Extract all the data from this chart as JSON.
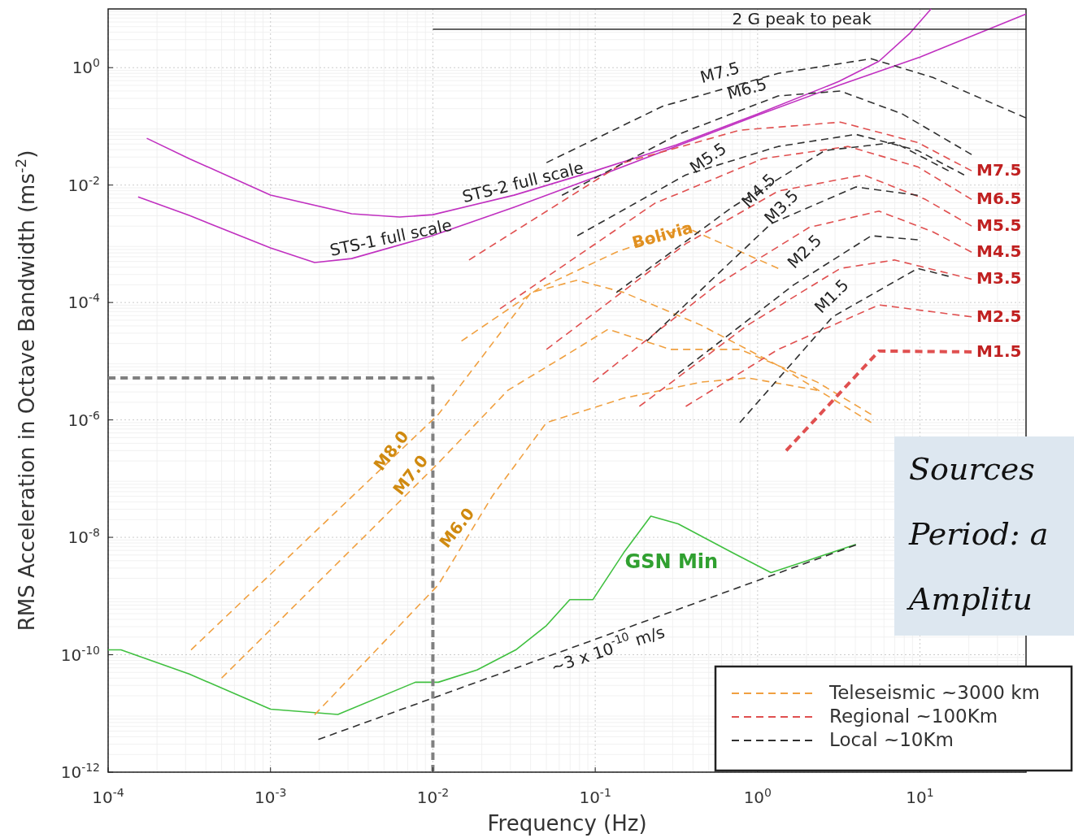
{
  "chart_data": {
    "type": "line",
    "xlabel": "Frequency (Hz)",
    "ylabel": "RMS Acceleration in Octave Bandwidth (ms$^{-2}$)",
    "log": "xy",
    "grid": true,
    "legend": "bottom right",
    "line_style": "solid",
    "xlim": [
      0.0001,
      45
    ],
    "ylim": [
      1e-12,
      10
    ],
    "xticks": [
      {
        "value": 0.0001,
        "label": "10$^{-4}$"
      },
      {
        "value": 0.001,
        "label": "10$^{-3}$"
      },
      {
        "value": 0.01,
        "label": "10$^{-2}$"
      },
      {
        "value": 0.1,
        "label": "10$^{-1}$"
      },
      {
        "value": 1,
        "label": "10$^{0}$"
      },
      {
        "value": 10,
        "label": "10$^{1}$"
      }
    ],
    "yticks": [
      {
        "value": 1e-12,
        "label": "10$^{-12}$"
      },
      {
        "value": 1e-10,
        "label": "10$^{-10}$"
      },
      {
        "value": 1e-08,
        "label": "10$^{-8}$"
      },
      {
        "value": 1e-06,
        "label": "10$^{-6}$"
      },
      {
        "value": 0.0001,
        "label": "10$^{-4}$"
      },
      {
        "value": 0.01,
        "label": "10$^{-2}$"
      },
      {
        "value": 1,
        "label": "10$^{0}$"
      }
    ],
    "series": [
      {
        "color": "#c030c0",
        "x": [
          0.000173,
          0.000316,
          0.001,
          0.00316,
          0.00624,
          0.01,
          0.0316,
          0.1,
          0.316,
          1,
          3.16,
          5.6,
          8.7,
          11.7
        ],
        "values": [
          0.0627,
          0.0282,
          0.00676,
          0.00324,
          0.00285,
          0.00313,
          0.00673,
          0.0175,
          0.0485,
          0.163,
          0.58,
          1.29,
          3.9,
          10
        ]
      },
      {
        "color": "#c030c0",
        "x": [
          0.000153,
          0.000316,
          0.001,
          0.00187,
          0.00316,
          0.01,
          0.0316,
          0.1,
          0.316,
          1,
          3.16,
          10,
          45
        ],
        "values": [
          0.0063,
          0.00304,
          0.00085,
          0.00048,
          0.00056,
          0.00138,
          0.0042,
          0.0136,
          0.0457,
          0.155,
          0.5,
          1.51,
          8.2
        ]
      },
      {
        "color": "#40c040",
        "x": [
          0.0001,
          0.00012,
          0.000316,
          0.001,
          0.0026,
          0.0078,
          0.0108,
          0.0187,
          0.0324,
          0.0501,
          0.0697,
          0.0968,
          0.15,
          0.22,
          0.324,
          0.697,
          1.21,
          2.08,
          4.03
        ],
        "values": [
          1.21e-10,
          1.21e-10,
          4.7e-11,
          1.18e-11,
          9.6e-12,
          3.4e-11,
          3.4e-11,
          5.5e-11,
          1.21e-10,
          3.15e-10,
          8.7e-10,
          8.7e-10,
          5.5e-09,
          2.3e-08,
          1.7e-08,
          5.5e-09,
          2.5e-09,
          4.1e-09,
          7.6e-09
        ]
      },
      {
        "color": "#303030",
        "line_style": "dashed",
        "x": [
          0.00197,
          4.03
        ],
        "values": [
          3.6e-12,
          7.4e-09
        ]
      },
      {
        "color": "#303030",
        "x": [
          0.01,
          45
        ],
        "values": [
          4.5,
          4.5
        ]
      },
      {
        "color": "#808080",
        "line_style": "dashed",
        "x": [
          0.0001,
          0.01,
          0.01
        ],
        "values": [
          5.2e-06,
          5.2e-06,
          1e-12
        ]
      },
      {
        "name": "Teleseismic ~3000 km",
        "color": "#f0a040",
        "line_style": "dashed",
        "x": [
          0.000324,
          0.0108,
          0.0403,
          0.0776,
          0.15,
          0.449,
          1.34,
          5.01
        ],
        "values": [
          1.21e-10,
          1.24e-06,
          0.000148,
          0.00024,
          0.000148,
          4.1e-05,
          8.4e-06,
          9e-07
        ]
      },
      {
        "color": "#f0a040",
        "line_style": "dashed",
        "x": [
          0.0005,
          0.0108,
          0.029,
          0.0624,
          0.12,
          0.29,
          0.777,
          2.33,
          5.01
        ],
        "values": [
          4e-11,
          1.84e-07,
          3.2e-06,
          1.15e-05,
          3.5e-05,
          1.59e-05,
          1.59e-05,
          4.4e-06,
          1.24e-06
        ]
      },
      {
        "color": "#f0a040",
        "line_style": "dashed",
        "x": [
          0.00187,
          0.0108,
          0.0233,
          0.0501,
          0.15,
          0.449,
          0.867,
          2.33
        ],
        "values": [
          9.5e-12,
          1.55e-09,
          5.1e-08,
          9e-07,
          2.35e-06,
          4.4e-06,
          5.2e-06,
          3.2e-06
        ]
      },
      {
        "color": "#f0a040",
        "line_style": "dashed",
        "x": [
          0.015,
          0.0449,
          0.135,
          0.361,
          1.34
        ],
        "values": [
          2.2e-05,
          0.000173,
          0.00072,
          0.0019,
          0.00038
        ]
      },
      {
        "name": "Regional ~100Km",
        "color": "#e05050",
        "line_style": "dashed",
        "x": [
          0.0167,
          0.15,
          0.777,
          3.23,
          9.68,
          20.8
        ],
        "values": [
          0.00053,
          0.0241,
          0.086,
          0.118,
          0.053,
          0.0175
        ]
      },
      {
        "color": "#e05050",
        "line_style": "dashed",
        "x": [
          0.0259,
          0.233,
          1.08,
          3.61,
          9.68,
          20.8
        ],
        "values": [
          7.8e-05,
          0.0049,
          0.0282,
          0.0455,
          0.0205,
          0.0057
        ]
      },
      {
        "color": "#e05050",
        "line_style": "dashed",
        "x": [
          0.0501,
          0.361,
          1.34,
          4.49,
          10.8,
          20.8
        ],
        "values": [
          1.59e-05,
          0.001,
          0.0079,
          0.0149,
          0.0057,
          0.002
        ]
      },
      {
        "color": "#e05050",
        "line_style": "dashed",
        "x": [
          0.0968,
          0.56,
          2.08,
          5.59,
          12,
          20.8
        ],
        "values": [
          4.4e-06,
          0.0002,
          0.0019,
          0.0036,
          0.0016,
          0.00072
        ]
      },
      {
        "color": "#e05050",
        "line_style": "dashed",
        "x": [
          0.187,
          0.867,
          3.23,
          6.96,
          20.8
        ],
        "values": [
          1.7e-06,
          4.1e-05,
          0.00038,
          0.00053,
          0.00025
        ]
      },
      {
        "color": "#e05050",
        "line_style": "dashed",
        "x": [
          0.361,
          1.34,
          5.59,
          20.8
        ],
        "values": [
          1.7e-06,
          1.59e-05,
          9.1e-05,
          5.7e-05
        ]
      },
      {
        "color": "#e05050",
        "line_style": "dashed",
        "x": [
          1.5,
          5.59,
          20.8
        ],
        "values": [
          3e-07,
          1.49e-05,
          1.44e-05
        ]
      },
      {
        "name": "Local ~10Km",
        "color": "#303030",
        "line_style": "dashed",
        "x": [
          0.0501,
          0.26,
          1.34,
          5.01,
          12,
          45
        ],
        "values": [
          0.0241,
          0.22,
          0.8,
          1.42,
          0.68,
          0.139
        ]
      },
      {
        "color": "#303030",
        "line_style": "dashed",
        "x": [
          0.0624,
          0.324,
          1.34,
          3.23,
          7.77,
          20.8
        ],
        "values": [
          0.0067,
          0.073,
          0.33,
          0.4,
          0.163,
          0.0331
        ]
      },
      {
        "color": "#303030",
        "line_style": "dashed",
        "x": [
          0.0776,
          0.361,
          1.34,
          4.03,
          9.68,
          18.7
        ],
        "values": [
          0.00137,
          0.0149,
          0.0455,
          0.073,
          0.0388,
          0.0149
        ]
      },
      {
        "color": "#303030",
        "line_style": "dashed",
        "x": [
          0.135,
          0.697,
          2.6,
          6.96,
          15
        ],
        "values": [
          0.000148,
          0.0042,
          0.0388,
          0.053,
          0.0175
        ]
      },
      {
        "color": "#303030",
        "line_style": "dashed",
        "x": [
          0.208,
          1.21,
          4.03,
          9.68
        ],
        "values": [
          2.2e-05,
          0.0022,
          0.0093,
          0.0067
        ]
      },
      {
        "color": "#303030",
        "line_style": "dashed",
        "x": [
          0.324,
          1.67,
          5.01,
          9.68
        ],
        "values": [
          6.1e-06,
          0.0002,
          0.00137,
          0.00117
        ]
      },
      {
        "color": "#303030",
        "line_style": "dashed",
        "x": [
          0.777,
          2.9,
          9.68,
          15
        ],
        "values": [
          9e-07,
          5.7e-05,
          0.00038,
          0.00028
        ]
      }
    ],
    "annotations": [
      {
        "text": "2 G peak to peak",
        "x": 1.87,
        "y": 4.5
      },
      {
        "text": "STS-1 full scale",
        "x": 0.0056,
        "y": 0.00085
      },
      {
        "text": "Bolivia",
        "x": 0.26,
        "y": 0.00137
      },
      {
        "text": "M4.5",
        "x": 1.02,
        "y": 0.0079
      },
      {
        "text": "M7.5",
        "x": 20.8,
        "y": 0.0175
      },
      {
        "text": "M6.5",
        "x": 20.8,
        "y": 0.0057
      },
      {
        "text": "M5.5",
        "x": 20.8,
        "y": 0.002
      },
      {
        "text": "M4.5",
        "x": 20.8,
        "y": 0.00072
      },
      {
        "text": "M3.5",
        "x": 20.8,
        "y": 0.00025
      },
      {
        "text": "M2.5",
        "x": 20.8,
        "y": 5.7e-05
      },
      {
        "text": "M1.5",
        "x": 20.8,
        "y": 1.44e-05
      },
      "STS-2 full scale",
      "GSN Min",
      "~3 x 10$^{-10}$ m/s",
      "M8.0",
      "M7.0",
      "M6.0",
      "M7.5",
      "M6.5",
      "M5.5",
      "M3.5",
      "M2.5",
      "M1.5",
      "Sources",
      "Period: a",
      "Amplitu"
    ]
  }
}
